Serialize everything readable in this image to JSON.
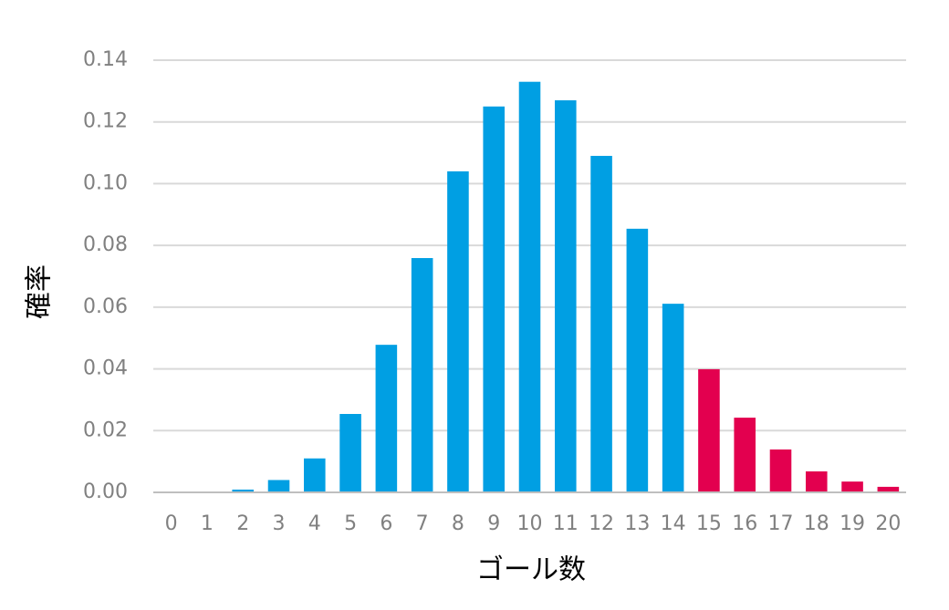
{
  "chart_data": {
    "type": "bar",
    "x_label": "ゴール数",
    "y_label": "確率",
    "categories": [
      "0",
      "1",
      "2",
      "3",
      "4",
      "5",
      "6",
      "7",
      "8",
      "9",
      "10",
      "11",
      "12",
      "13",
      "14",
      "15",
      "16",
      "17",
      "18",
      "19",
      "20"
    ],
    "values": [
      0.0,
      0.0001,
      0.0009,
      0.004,
      0.011,
      0.0254,
      0.0478,
      0.0759,
      0.104,
      0.125,
      0.133,
      0.127,
      0.109,
      0.0854,
      0.0611,
      0.0399,
      0.0242,
      0.0139,
      0.0068,
      0.0035,
      0.0018
    ],
    "colors": [
      "#009fe3",
      "#009fe3",
      "#009fe3",
      "#009fe3",
      "#009fe3",
      "#009fe3",
      "#009fe3",
      "#009fe3",
      "#009fe3",
      "#009fe3",
      "#009fe3",
      "#009fe3",
      "#009fe3",
      "#009fe3",
      "#009fe3",
      "#e3004f",
      "#e3004f",
      "#e3004f",
      "#e3004f",
      "#e3004f",
      "#e3004f"
    ],
    "ylim": [
      0,
      0.14
    ],
    "yticks": [
      {
        "value": 0,
        "label": "0.00"
      },
      {
        "value": 0.02,
        "label": "0.02"
      },
      {
        "value": 0.04,
        "label": "0.04"
      },
      {
        "value": 0.06,
        "label": "0.06"
      },
      {
        "value": 0.08,
        "label": "0.08"
      },
      {
        "value": 0.1,
        "label": "0.10"
      },
      {
        "value": 0.12,
        "label": "0.12"
      },
      {
        "value": 0.14,
        "label": "0.14"
      }
    ],
    "grid": true
  }
}
